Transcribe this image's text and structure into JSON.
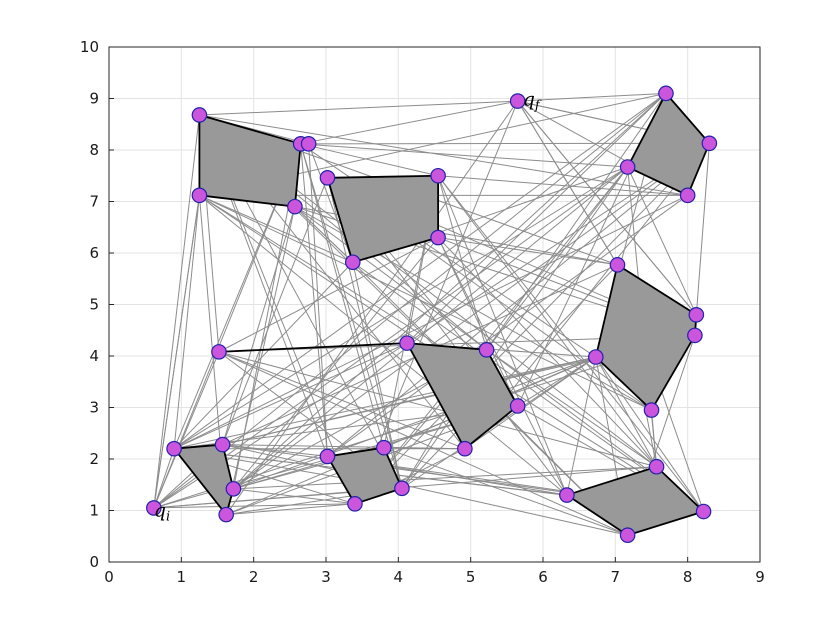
{
  "chart_data": {
    "type": "scatter",
    "xlim": [
      0,
      9
    ],
    "ylim": [
      0,
      10
    ],
    "x_ticks": [
      "0",
      "1",
      "2",
      "3",
      "4",
      "5",
      "6",
      "7",
      "8",
      "9"
    ],
    "y_ticks": [
      "0",
      "1",
      "2",
      "3",
      "4",
      "5",
      "6",
      "7",
      "8",
      "9",
      "10"
    ],
    "grid": true,
    "labels": [
      {
        "text": "q",
        "sub": "i",
        "x": 0.62,
        "y": 0.88
      },
      {
        "text": "q",
        "sub": "f",
        "x": 5.72,
        "y": 8.86
      }
    ],
    "obstacles": [
      [
        [
          1.25,
          8.68
        ],
        [
          2.65,
          8.12
        ],
        [
          2.57,
          6.9
        ],
        [
          1.25,
          7.12
        ]
      ],
      [
        [
          3.02,
          7.46
        ],
        [
          4.55,
          7.5
        ],
        [
          4.55,
          6.3
        ],
        [
          3.37,
          5.82
        ]
      ],
      [
        [
          7.7,
          9.1
        ],
        [
          8.3,
          8.13
        ],
        [
          8.0,
          7.12
        ],
        [
          7.17,
          7.67
        ]
      ],
      [
        [
          7.03,
          5.77
        ],
        [
          8.12,
          4.8
        ],
        [
          8.1,
          4.4
        ],
        [
          7.5,
          2.95
        ],
        [
          6.73,
          3.98
        ]
      ],
      [
        [
          4.12,
          4.25
        ],
        [
          5.22,
          4.12
        ],
        [
          5.65,
          3.03
        ],
        [
          4.92,
          2.2
        ]
      ],
      [
        [
          0.9,
          2.2
        ],
        [
          1.57,
          2.28
        ],
        [
          1.72,
          1.42
        ],
        [
          1.62,
          0.92
        ]
      ],
      [
        [
          3.02,
          2.05
        ],
        [
          3.8,
          2.22
        ],
        [
          4.05,
          1.43
        ],
        [
          3.4,
          1.13
        ]
      ],
      [
        [
          6.33,
          1.3
        ],
        [
          7.57,
          1.85
        ],
        [
          8.22,
          0.98
        ],
        [
          7.17,
          0.52
        ]
      ]
    ],
    "roadmap_nodes": [
      [
        0.62,
        1.05
      ],
      [
        5.65,
        8.95
      ],
      [
        1.25,
        8.68
      ],
      [
        2.65,
        8.12
      ],
      [
        2.76,
        8.12
      ],
      [
        2.57,
        6.9
      ],
      [
        1.25,
        7.12
      ],
      [
        3.02,
        7.46
      ],
      [
        4.55,
        7.5
      ],
      [
        4.55,
        6.3
      ],
      [
        3.37,
        5.82
      ],
      [
        7.7,
        9.1
      ],
      [
        8.3,
        8.13
      ],
      [
        8.0,
        7.12
      ],
      [
        7.17,
        7.67
      ],
      [
        7.03,
        5.77
      ],
      [
        8.12,
        4.8
      ],
      [
        8.1,
        4.4
      ],
      [
        7.5,
        2.95
      ],
      [
        6.73,
        3.98
      ],
      [
        1.52,
        4.08
      ],
      [
        4.12,
        4.25
      ],
      [
        5.22,
        4.12
      ],
      [
        5.65,
        3.03
      ],
      [
        4.92,
        2.2
      ],
      [
        0.9,
        2.2
      ],
      [
        1.57,
        2.28
      ],
      [
        1.72,
        1.42
      ],
      [
        1.62,
        0.92
      ],
      [
        3.02,
        2.05
      ],
      [
        3.8,
        2.22
      ],
      [
        4.05,
        1.43
      ],
      [
        3.4,
        1.13
      ],
      [
        6.33,
        1.3
      ],
      [
        7.57,
        1.85
      ],
      [
        8.22,
        0.98
      ],
      [
        7.17,
        0.52
      ]
    ],
    "bold_edges": [
      [
        20,
        21
      ]
    ],
    "colors": {
      "obstacle_fill": "#999999",
      "edge": "#8c8c8c",
      "node_fill": "#cc55dd",
      "node_stroke": "#2222aa"
    }
  }
}
